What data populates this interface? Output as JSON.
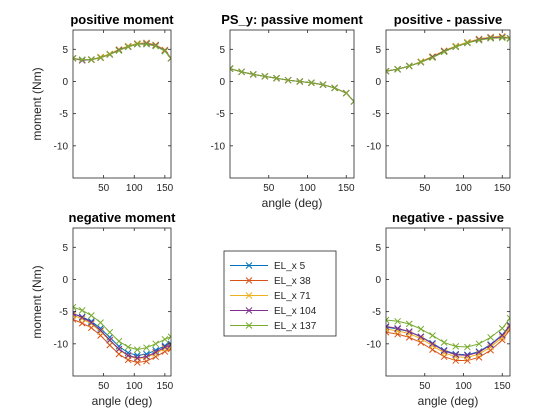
{
  "figure": {
    "legend": {
      "location": "bottom-center",
      "entries": [
        "EL_x 5",
        "EL_x 38",
        "EL_x 71",
        "EL_x 104",
        "EL_x 137"
      ]
    },
    "series_colors": [
      "#0072BD",
      "#D95319",
      "#EDB120",
      "#7E2F8E",
      "#77AC30"
    ]
  },
  "chart_data": [
    {
      "id": "positive-moment",
      "type": "line",
      "title": "positive moment",
      "xlabel": "",
      "ylabel": "moment (Nm)",
      "xlim": [
        0,
        160
      ],
      "ylim": [
        -15,
        8
      ],
      "xticks": [
        50,
        100,
        150
      ],
      "yticks": [
        5,
        0,
        -5,
        -10
      ],
      "x": [
        0,
        15,
        30,
        45,
        60,
        75,
        90,
        105,
        120,
        135,
        150,
        160
      ],
      "series": [
        {
          "name": "EL_x 5",
          "values": [
            3.6,
            3.3,
            3.4,
            3.7,
            4.2,
            4.9,
            5.4,
            5.8,
            5.8,
            5.6,
            4.8,
            3.6
          ]
        },
        {
          "name": "EL_x 38",
          "values": [
            3.6,
            3.3,
            3.4,
            3.7,
            4.2,
            4.9,
            5.5,
            5.9,
            6.0,
            5.7,
            4.9,
            3.6
          ]
        },
        {
          "name": "EL_x 71",
          "values": [
            3.6,
            3.3,
            3.4,
            3.8,
            4.3,
            5.0,
            5.5,
            5.9,
            6.0,
            5.7,
            4.9,
            3.6
          ]
        },
        {
          "name": "EL_x 104",
          "values": [
            3.6,
            3.3,
            3.4,
            3.7,
            4.2,
            4.9,
            5.4,
            5.8,
            5.9,
            5.6,
            4.8,
            3.6
          ]
        },
        {
          "name": "EL_x 137",
          "values": [
            3.6,
            3.4,
            3.4,
            3.7,
            4.2,
            4.8,
            5.4,
            5.8,
            5.8,
            5.5,
            4.7,
            3.6
          ]
        }
      ]
    },
    {
      "id": "passive-moment",
      "type": "line",
      "title": "PS_y: passive moment",
      "xlabel": "angle (deg)",
      "ylabel": "",
      "xlim": [
        0,
        160
      ],
      "ylim": [
        -15,
        8
      ],
      "xticks": [
        50,
        100,
        150
      ],
      "yticks": [
        5,
        0,
        -5,
        -10
      ],
      "x": [
        0,
        15,
        30,
        45,
        60,
        75,
        90,
        105,
        120,
        135,
        150,
        160
      ],
      "series": [
        {
          "name": "EL_x 5",
          "values": [
            2.0,
            1.5,
            1.1,
            0.8,
            0.5,
            0.2,
            0.0,
            -0.2,
            -0.5,
            -1.0,
            -1.8,
            -3.1
          ]
        },
        {
          "name": "EL_x 38",
          "values": [
            2.0,
            1.5,
            1.1,
            0.8,
            0.5,
            0.2,
            0.0,
            -0.2,
            -0.5,
            -1.0,
            -1.8,
            -3.1
          ]
        },
        {
          "name": "EL_x 71",
          "values": [
            2.0,
            1.5,
            1.1,
            0.8,
            0.5,
            0.2,
            0.0,
            -0.2,
            -0.5,
            -1.0,
            -1.8,
            -3.1
          ]
        },
        {
          "name": "EL_x 104",
          "values": [
            2.0,
            1.5,
            1.1,
            0.8,
            0.5,
            0.2,
            0.0,
            -0.2,
            -0.5,
            -1.0,
            -1.8,
            -3.1
          ]
        },
        {
          "name": "EL_x 137",
          "values": [
            2.0,
            1.5,
            1.1,
            0.8,
            0.5,
            0.2,
            0.0,
            -0.2,
            -0.5,
            -1.0,
            -1.8,
            -3.1
          ]
        }
      ]
    },
    {
      "id": "positive-minus-passive",
      "type": "line",
      "title": "positive - passive",
      "xlabel": "",
      "ylabel": "",
      "xlim": [
        0,
        160
      ],
      "ylim": [
        -15,
        8
      ],
      "xticks": [
        50,
        100,
        150
      ],
      "yticks": [
        5,
        0,
        -5,
        -10
      ],
      "x": [
        0,
        15,
        30,
        45,
        60,
        75,
        90,
        105,
        120,
        135,
        150,
        160
      ],
      "series": [
        {
          "name": "EL_x 5",
          "values": [
            1.6,
            1.9,
            2.4,
            3.0,
            3.8,
            4.7,
            5.4,
            6.0,
            6.5,
            6.8,
            6.9,
            6.7
          ]
        },
        {
          "name": "EL_x 38",
          "values": [
            1.6,
            1.9,
            2.4,
            3.0,
            3.8,
            4.7,
            5.5,
            6.1,
            6.6,
            6.9,
            7.0,
            6.7
          ]
        },
        {
          "name": "EL_x 71",
          "values": [
            1.6,
            1.9,
            2.4,
            3.1,
            3.9,
            4.8,
            5.5,
            6.1,
            6.6,
            6.9,
            7.0,
            6.7
          ]
        },
        {
          "name": "EL_x 104",
          "values": [
            1.6,
            1.9,
            2.4,
            3.0,
            3.8,
            4.7,
            5.4,
            6.0,
            6.5,
            6.8,
            6.9,
            6.7
          ]
        },
        {
          "name": "EL_x 137",
          "values": [
            1.6,
            1.9,
            2.4,
            3.0,
            3.7,
            4.6,
            5.4,
            6.0,
            6.4,
            6.7,
            6.8,
            6.7
          ]
        }
      ]
    },
    {
      "id": "negative-moment",
      "type": "line",
      "title": "negative moment",
      "xlabel": "angle (deg)",
      "ylabel": "moment (Nm)",
      "xlim": [
        0,
        160
      ],
      "ylim": [
        -15,
        8
      ],
      "xticks": [
        50,
        100,
        150
      ],
      "yticks": [
        5,
        0,
        -5,
        -10
      ],
      "x": [
        0,
        15,
        30,
        45,
        60,
        75,
        90,
        105,
        120,
        135,
        150,
        160
      ],
      "series": [
        {
          "name": "EL_x 5",
          "values": [
            -5.3,
            -5.8,
            -6.5,
            -7.6,
            -9.0,
            -10.4,
            -11.4,
            -11.8,
            -11.6,
            -11.0,
            -10.3,
            -10.0
          ]
        },
        {
          "name": "EL_x 38",
          "values": [
            -6.2,
            -6.8,
            -7.5,
            -8.7,
            -10.2,
            -11.6,
            -12.5,
            -12.9,
            -12.7,
            -12.0,
            -11.2,
            -10.8
          ]
        },
        {
          "name": "EL_x 71",
          "values": [
            -5.6,
            -6.1,
            -6.9,
            -8.1,
            -9.5,
            -10.9,
            -11.9,
            -12.3,
            -12.1,
            -11.5,
            -10.7,
            -10.4
          ]
        },
        {
          "name": "EL_x 104",
          "values": [
            -5.3,
            -5.9,
            -6.7,
            -7.9,
            -9.4,
            -10.8,
            -11.8,
            -12.2,
            -12.0,
            -11.3,
            -10.5,
            -10.2
          ]
        },
        {
          "name": "EL_x 137",
          "values": [
            -4.3,
            -4.8,
            -5.6,
            -6.7,
            -8.2,
            -9.6,
            -10.5,
            -10.9,
            -10.6,
            -10.0,
            -9.3,
            -8.9
          ]
        }
      ]
    },
    {
      "id": "negative-minus-passive",
      "type": "line",
      "title": "negative - passive",
      "xlabel": "angle (deg)",
      "ylabel": "",
      "xlim": [
        0,
        160
      ],
      "ylim": [
        -15,
        8
      ],
      "xticks": [
        50,
        100,
        150
      ],
      "yticks": [
        5,
        0,
        -5,
        -10
      ],
      "x": [
        0,
        15,
        30,
        45,
        60,
        75,
        90,
        105,
        120,
        135,
        150,
        160
      ],
      "series": [
        {
          "name": "EL_x 5",
          "values": [
            -7.4,
            -7.7,
            -8.1,
            -8.9,
            -9.9,
            -11.0,
            -11.6,
            -11.7,
            -11.2,
            -10.1,
            -8.6,
            -7.1
          ]
        },
        {
          "name": "EL_x 38",
          "values": [
            -8.2,
            -8.5,
            -9.0,
            -9.8,
            -10.9,
            -12.0,
            -12.6,
            -12.6,
            -12.1,
            -11.0,
            -9.4,
            -7.8
          ]
        },
        {
          "name": "EL_x 71",
          "values": [
            -7.7,
            -8.0,
            -8.4,
            -9.2,
            -10.3,
            -11.4,
            -12.0,
            -12.1,
            -11.6,
            -10.5,
            -9.0,
            -7.4
          ]
        },
        {
          "name": "EL_x 104",
          "values": [
            -7.3,
            -7.6,
            -8.1,
            -8.9,
            -10.0,
            -11.1,
            -11.7,
            -11.8,
            -11.3,
            -10.2,
            -8.7,
            -7.2
          ]
        },
        {
          "name": "EL_x 137",
          "values": [
            -6.3,
            -6.5,
            -6.9,
            -7.7,
            -8.7,
            -9.8,
            -10.4,
            -10.5,
            -10.0,
            -9.0,
            -7.6,
            -6.0
          ]
        }
      ]
    }
  ]
}
